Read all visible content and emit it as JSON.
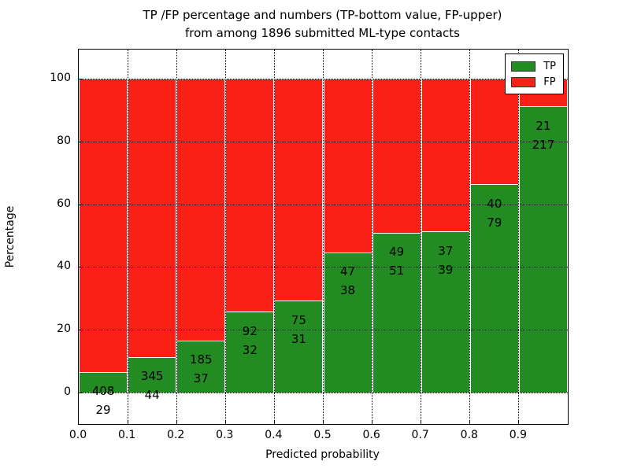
{
  "title": {
    "line1": "TP /FP percentage and numbers (TP-bottom value, FP-upper)",
    "line2": "from among 1896 submitted ML-type contacts"
  },
  "chart_data": {
    "type": "bar",
    "stacked": true,
    "values_normalized_to_percent": true,
    "title": "TP /FP percentage and numbers (TP-bottom value, FP-upper) from among 1896 submitted ML-type contacts",
    "xlabel": "Predicted probability",
    "ylabel": "Percentage",
    "total_contacts": 1896,
    "categories": [
      "0.0-0.1",
      "0.1-0.2",
      "0.2-0.3",
      "0.3-0.4",
      "0.4-0.5",
      "0.5-0.6",
      "0.6-0.7",
      "0.7-0.8",
      "0.8-0.9",
      "0.9-1.0"
    ],
    "series": [
      {
        "name": "TP",
        "color": "#228b22",
        "values": [
          29,
          44,
          37,
          32,
          31,
          38,
          51,
          39,
          79,
          217
        ]
      },
      {
        "name": "FP",
        "color": "#fb2016",
        "values": [
          408,
          345,
          185,
          92,
          75,
          47,
          49,
          37,
          40,
          21
        ]
      }
    ],
    "annotation_note": "TP count printed just below each TP/FP boundary, FP count just above it",
    "x_tick_labels": [
      "0.0",
      "0.1",
      "0.2",
      "0.3",
      "0.4",
      "0.5",
      "0.6",
      "0.7",
      "0.8",
      "0.9"
    ],
    "y_tick_labels": [
      "0",
      "20",
      "40",
      "60",
      "80",
      "100"
    ],
    "y_tick_values": [
      0,
      20,
      40,
      60,
      80,
      100
    ],
    "ylim": [
      -10,
      109.3
    ],
    "xlim": [
      0.0,
      1.0
    ],
    "grid": "dotted black, both axes",
    "legend": {
      "position": "upper right",
      "entries": [
        {
          "label": "TP",
          "color": "#228b22"
        },
        {
          "label": "FP",
          "color": "#fb2016"
        }
      ]
    }
  }
}
